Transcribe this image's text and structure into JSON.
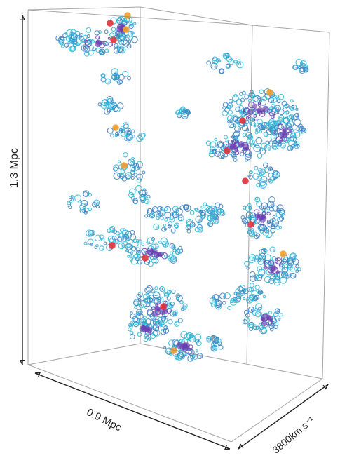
{
  "figure": {
    "labels": {
      "height": "1.3 Mpc",
      "width": "0.9 Mpc",
      "depth": "3800km s⁻¹"
    },
    "colors": {
      "box_line": "#888888",
      "axis": "#222222",
      "gas_low": "#2fb6d6",
      "gas_mid": "#3a7fc0",
      "gas_high": "#6a3fb0",
      "gas_peak": "#c0307a",
      "source_red": "#e0303a",
      "source_orange": "#f0a030"
    }
  }
}
